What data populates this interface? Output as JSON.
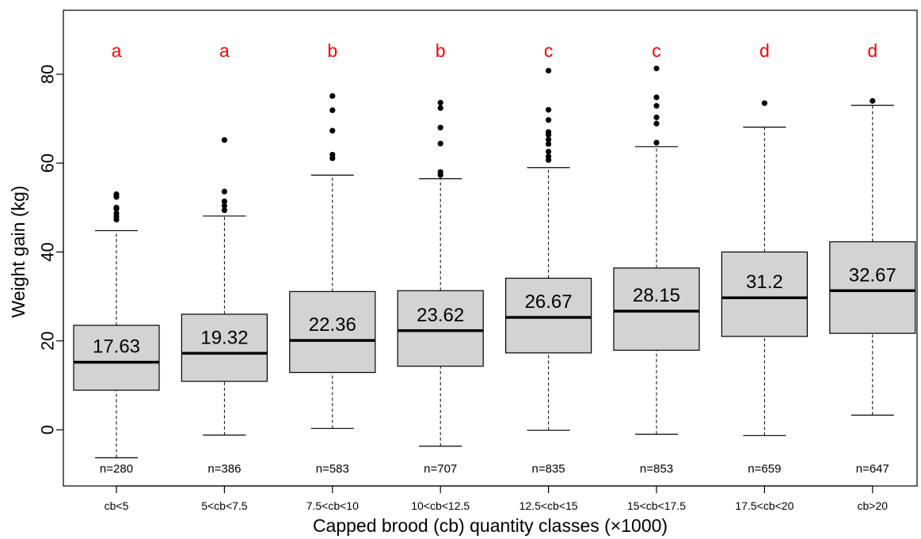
{
  "colors": {
    "box_fill": "#d3d3d3",
    "stroke": "#000000",
    "letters": "#ff0000",
    "background": "#ffffff"
  },
  "chart_data": {
    "type": "boxplot",
    "xlabel": "Capped brood (cb) quantity classes (×1000)",
    "ylabel": "Weight gain (kg)",
    "ylim": [
      -12,
      95
    ],
    "yticks": [
      0,
      20,
      40,
      60,
      80
    ],
    "grid": false,
    "categories": [
      "cb<5",
      "5<cb<7.5",
      "7.5<cb<10",
      "10<cb<12.5",
      "12.5<cb<15",
      "15<cb<17.5",
      "17.5<cb<20",
      "cb>20"
    ],
    "boxes": [
      {
        "category": "cb<5",
        "whisker_low": -6.3,
        "q1": 8.9,
        "median": 15.2,
        "q3": 23.5,
        "whisker_high": 44.8,
        "outliers": [
          47.3,
          48.0,
          48.7,
          49.7,
          50.0,
          52.4,
          53.0
        ],
        "mean_label": "17.63",
        "n_label": "n=280",
        "group": "a"
      },
      {
        "category": "5<cb<7.5",
        "whisker_low": -1.2,
        "q1": 10.9,
        "median": 17.2,
        "q3": 26.0,
        "whisker_high": 48.1,
        "outliers": [
          49.4,
          50.4,
          51.4,
          53.6,
          65.2
        ],
        "mean_label": "19.32",
        "n_label": "n=386",
        "group": "a"
      },
      {
        "category": "7.5<cb<10",
        "whisker_low": 0.3,
        "q1": 12.9,
        "median": 20.1,
        "q3": 31.1,
        "whisker_high": 57.3,
        "outliers": [
          61.1,
          61.9,
          67.3,
          71.9,
          75.1
        ],
        "mean_label": "22.36",
        "n_label": "n=583",
        "group": "b"
      },
      {
        "category": "10<cb<12.5",
        "whisker_low": -3.7,
        "q1": 14.3,
        "median": 22.3,
        "q3": 31.3,
        "whisker_high": 56.5,
        "outliers": [
          57.3,
          58.0,
          64.4,
          68.0,
          72.4,
          73.6
        ],
        "mean_label": "23.62",
        "n_label": "n=707",
        "group": "b"
      },
      {
        "category": "12.5<cb<15",
        "whisker_low": -0.1,
        "q1": 17.3,
        "median": 25.3,
        "q3": 34.1,
        "whisker_high": 59.0,
        "outliers": [
          60.7,
          61.5,
          62.6,
          64.3,
          65.3,
          66.4,
          67.0,
          69.7,
          72.0,
          80.8
        ],
        "mean_label": "26.67",
        "n_label": "n=835",
        "group": "c"
      },
      {
        "category": "15<cb<17.5",
        "whisker_low": -1.0,
        "q1": 17.9,
        "median": 26.7,
        "q3": 36.4,
        "whisker_high": 63.7,
        "outliers": [
          64.6,
          68.9,
          70.3,
          72.9,
          74.8,
          81.3
        ],
        "mean_label": "28.15",
        "n_label": "n=853",
        "group": "c"
      },
      {
        "category": "17.5<cb<20",
        "whisker_low": -1.3,
        "q1": 21.0,
        "median": 29.7,
        "q3": 40.0,
        "whisker_high": 68.1,
        "outliers": [
          73.5
        ],
        "mean_label": "31.2",
        "n_label": "n=659",
        "group": "d"
      },
      {
        "category": "cb>20",
        "whisker_low": 3.3,
        "q1": 21.7,
        "median": 31.3,
        "q3": 42.3,
        "whisker_high": 73.0,
        "outliers": [
          74.0
        ],
        "mean_label": "32.67",
        "n_label": "n=647",
        "group": "d"
      }
    ]
  }
}
